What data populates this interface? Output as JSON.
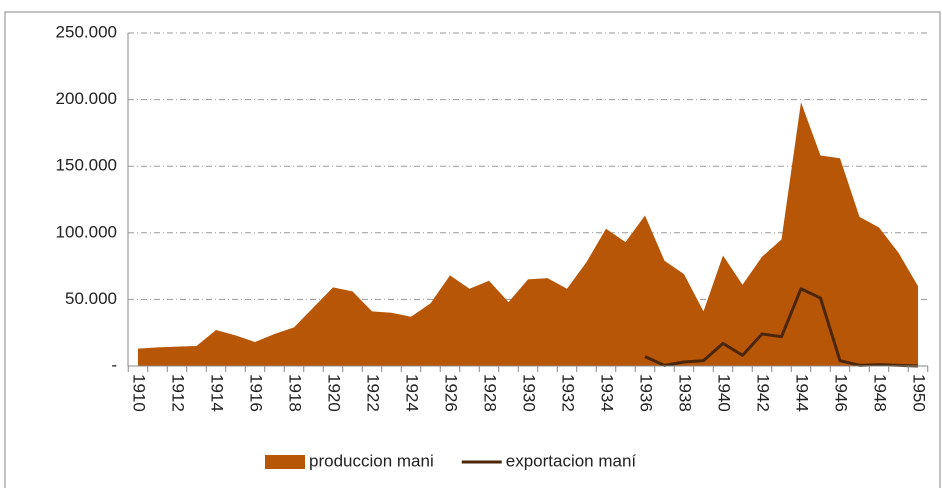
{
  "chart_data": {
    "type": "area",
    "categories": [
      "1910",
      null,
      "1912",
      null,
      "1914",
      null,
      "1916",
      null,
      "1918",
      null,
      "1920",
      null,
      "1922",
      null,
      "1924",
      null,
      "1926",
      null,
      "1928",
      null,
      "1930",
      null,
      "1932",
      null,
      "1934",
      null,
      "1936",
      null,
      "1938",
      null,
      "1940",
      null,
      "1942",
      null,
      "1944",
      null,
      "1946",
      null,
      "1948",
      null,
      "1950"
    ],
    "series": [
      {
        "name": "produccion mani",
        "type": "area",
        "color": "#b85608",
        "values": [
          13000,
          14000,
          14500,
          15000,
          27000,
          23000,
          18000,
          24000,
          29000,
          44000,
          59000,
          56000,
          41000,
          40000,
          37000,
          47000,
          68000,
          58000,
          64000,
          48000,
          65000,
          66000,
          58000,
          78000,
          103000,
          93000,
          113000,
          79000,
          69000,
          41000,
          83000,
          61000,
          82000,
          95000,
          198000,
          158000,
          156000,
          112000,
          104000,
          85000,
          60000
        ]
      },
      {
        "name": "exportacion maní",
        "type": "line",
        "color": "#4a2606",
        "values": [
          null,
          null,
          null,
          null,
          null,
          null,
          null,
          null,
          null,
          null,
          null,
          null,
          null,
          null,
          null,
          null,
          null,
          null,
          null,
          null,
          null,
          null,
          null,
          null,
          null,
          null,
          7000,
          500,
          3000,
          4000,
          17000,
          8000,
          24000,
          22000,
          58000,
          51000,
          4000,
          500,
          1000,
          500,
          0
        ]
      }
    ],
    "ylim": [
      0,
      250000
    ],
    "yticks": [
      {
        "value": 0,
        "label": "-"
      },
      {
        "value": 50000,
        "label": "50.000"
      },
      {
        "value": 100000,
        "label": "100.000"
      },
      {
        "value": 150000,
        "label": "150.000"
      },
      {
        "value": 200000,
        "label": "200.000"
      },
      {
        "value": 250000,
        "label": "250.000"
      }
    ],
    "grid": true,
    "legend": "bottom"
  }
}
